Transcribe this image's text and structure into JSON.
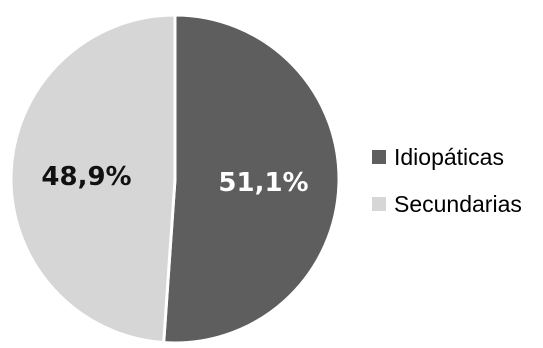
{
  "chart_data": {
    "type": "pie",
    "title": "",
    "slices": [
      {
        "label": "Idiopáticas",
        "value": 51.1,
        "display": "51,1%",
        "color": "#5e5e5e",
        "label_color": "#ffffff"
      },
      {
        "label": "Secundarias",
        "value": 48.9,
        "display": "48,9%",
        "color": "#d6d6d6",
        "label_color": "#111111"
      }
    ],
    "start_angle_deg": 0,
    "direction": "clockwise",
    "legend_position": "right",
    "slice_border_color": "#ffffff"
  }
}
